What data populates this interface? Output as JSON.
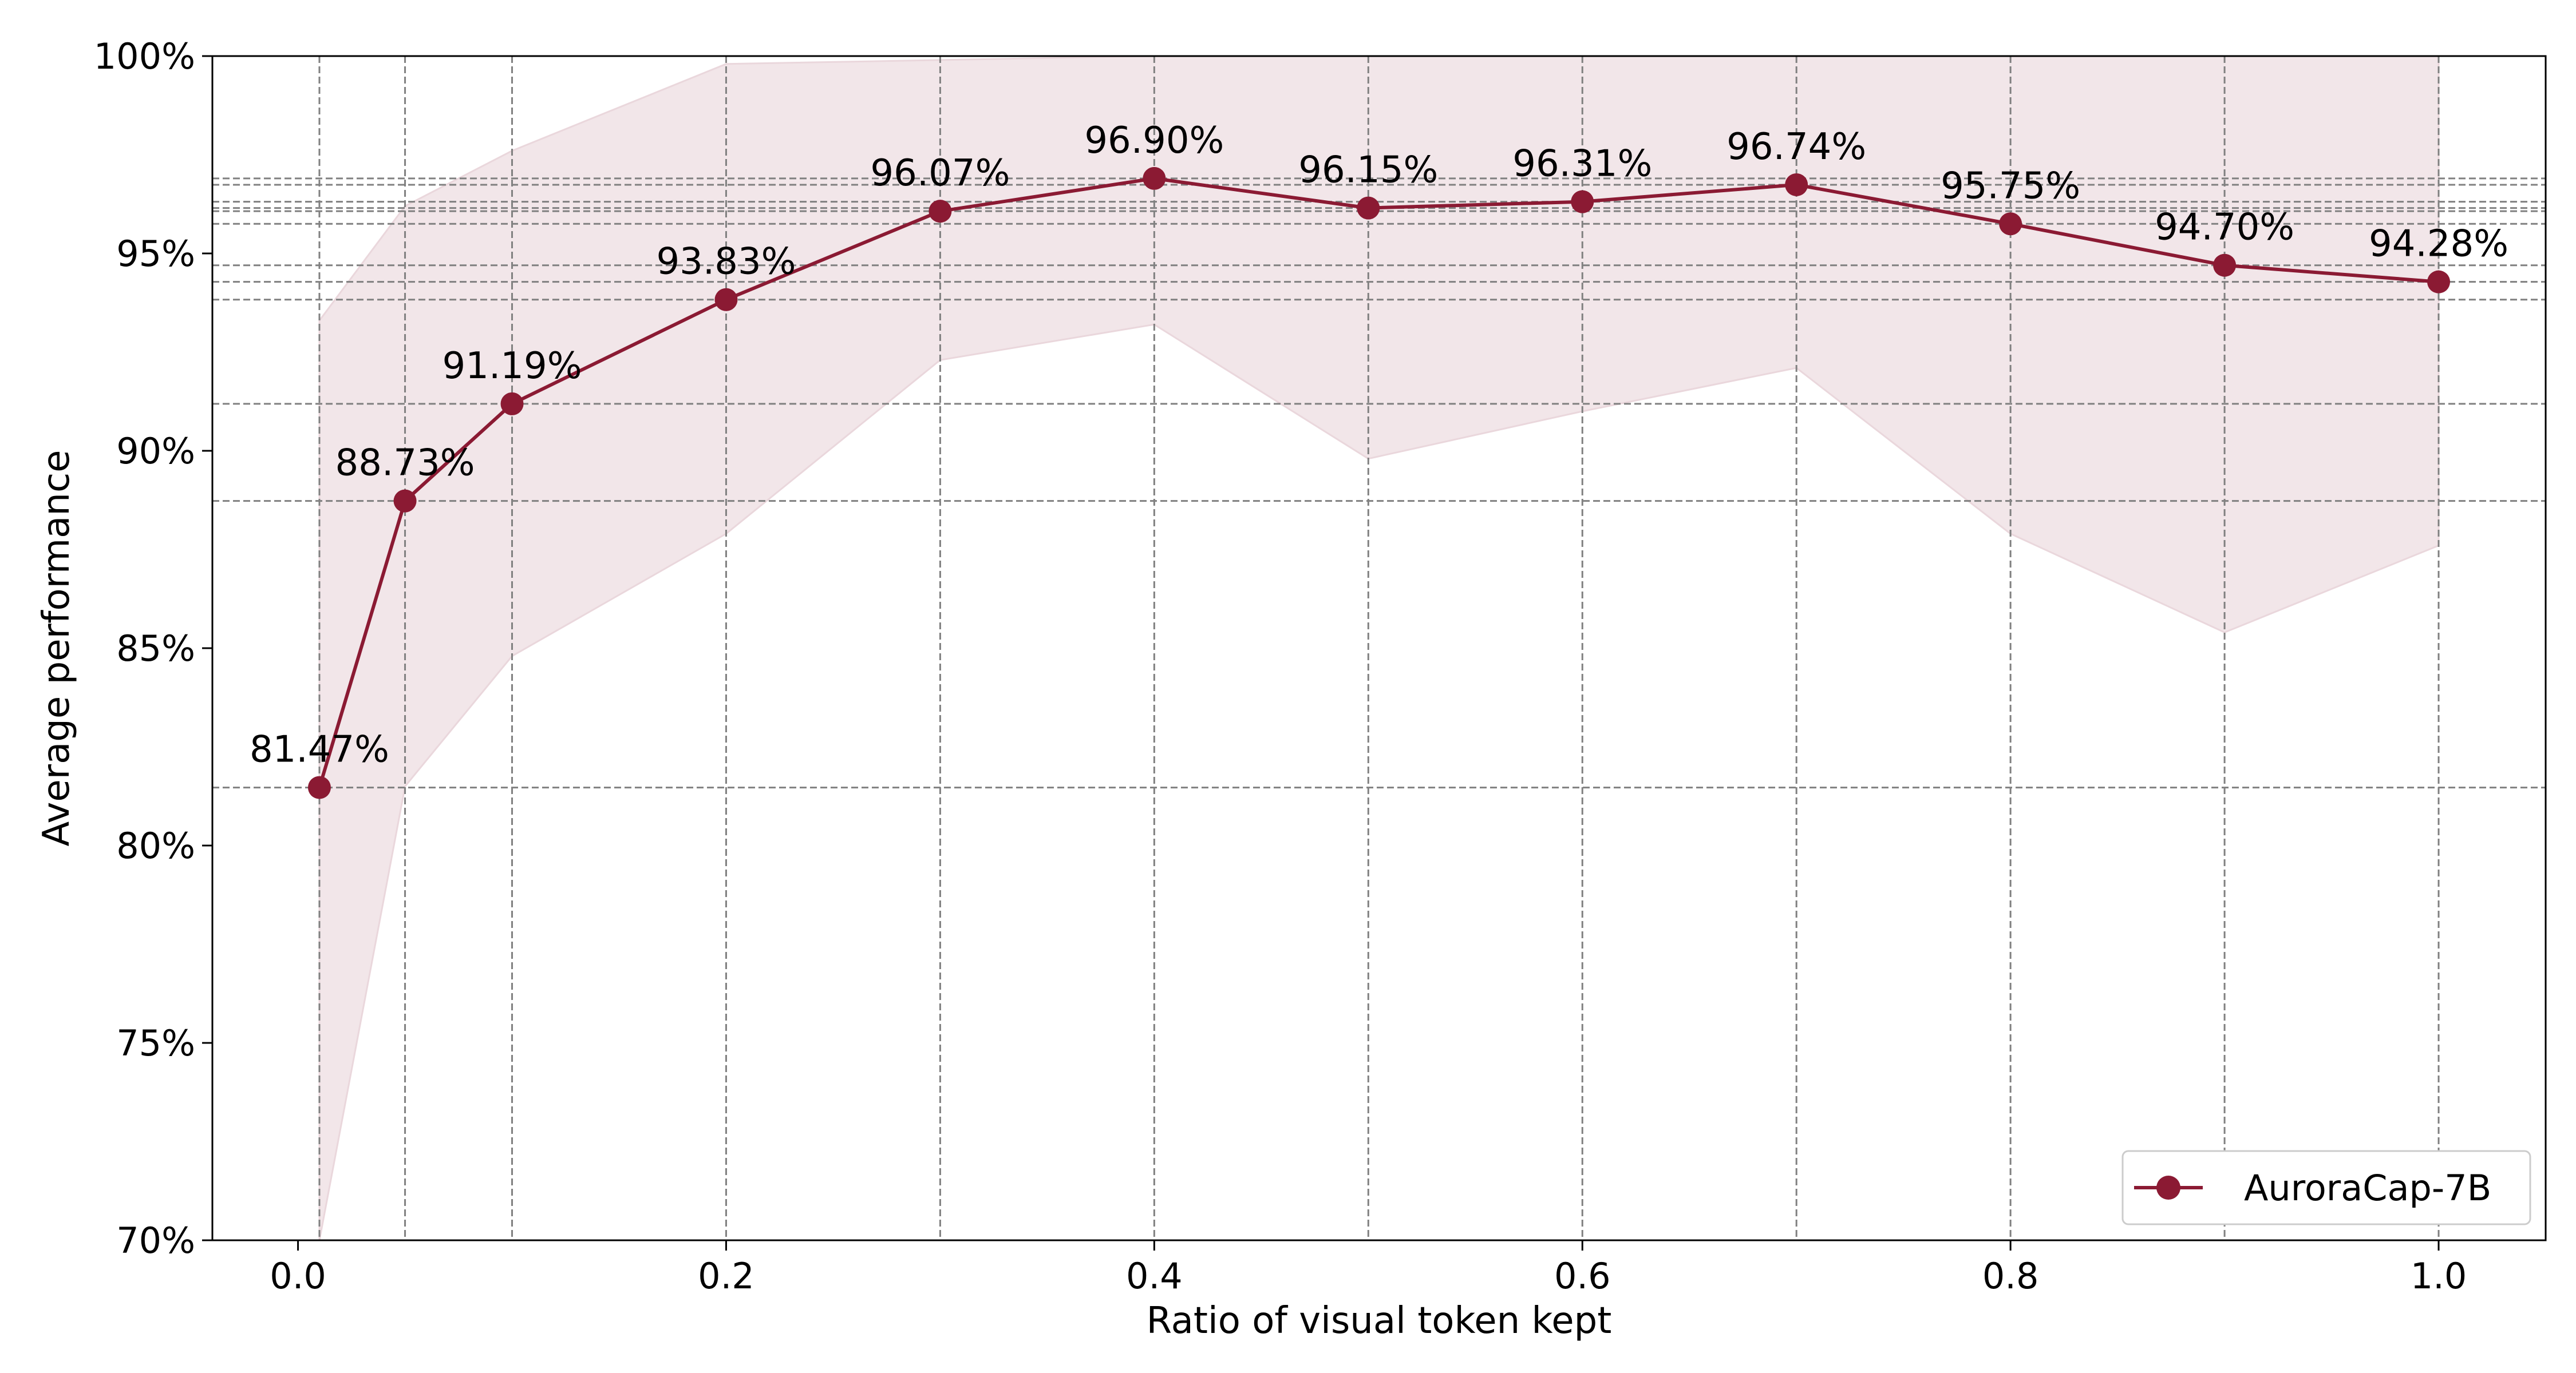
{
  "chart_data": {
    "type": "line",
    "xlabel": "Ratio of visual token kept",
    "ylabel": "Average performance",
    "xlim": [
      -0.04,
      1.05
    ],
    "ylim": [
      70,
      100
    ],
    "grid": true,
    "legend_position": "bottom-right",
    "x_ticks": [
      0.0,
      0.2,
      0.4,
      0.6,
      0.8,
      1.0
    ],
    "x_tick_labels": [
      "0.0",
      "0.2",
      "0.4",
      "0.6",
      "0.8",
      "1.0"
    ],
    "y_ticks": [
      70,
      75,
      80,
      85,
      90,
      95,
      100
    ],
    "y_tick_labels": [
      "70%",
      "75%",
      "80%",
      "85%",
      "90%",
      "95%",
      "100%"
    ],
    "x": [
      0.01,
      0.05,
      0.1,
      0.2,
      0.3,
      0.4,
      0.5,
      0.6,
      0.7,
      0.8,
      0.9,
      1.0
    ],
    "series": [
      {
        "name": "AuroraCap-7B",
        "color": "#8b1a33",
        "values": [
          81.47,
          88.73,
          91.19,
          93.83,
          96.07,
          96.9,
          96.15,
          96.31,
          96.74,
          95.75,
          94.7,
          94.28
        ],
        "data_labels": [
          "81.47%",
          "88.73%",
          "91.19%",
          "93.83%",
          "96.07%",
          "96.90%",
          "96.15%",
          "96.31%",
          "96.74%",
          "95.75%",
          "94.70%",
          "94.28%"
        ],
        "band_upper": [
          93.3,
          96.2,
          97.6,
          99.8,
          99.9,
          100.0,
          100.0,
          100.0,
          100.0,
          100.0,
          100.0,
          100.0
        ],
        "band_lower": [
          70.0,
          81.5,
          84.8,
          87.9,
          92.3,
          93.2,
          89.8,
          91.0,
          92.1,
          87.9,
          85.4,
          87.6
        ],
        "band_color": "#f2e6e9"
      }
    ]
  }
}
